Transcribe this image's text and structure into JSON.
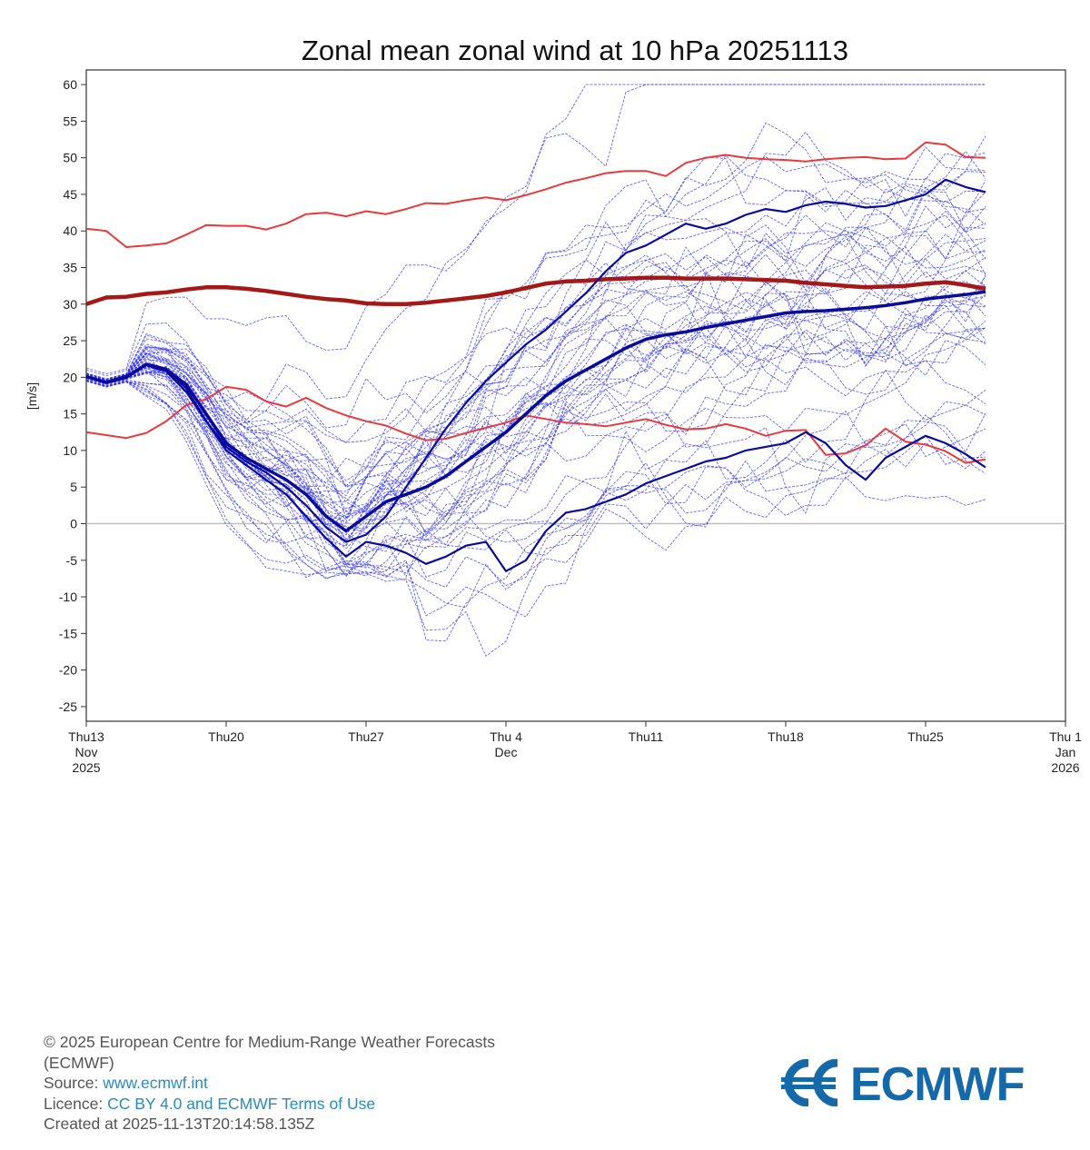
{
  "chart_data": {
    "type": "line",
    "title": "Zonal mean zonal wind at 10 hPa 20251113",
    "ylabel": "[m/s]",
    "ylim": [
      -27,
      62
    ],
    "yticks": [
      60,
      55,
      50,
      45,
      40,
      35,
      30,
      25,
      20,
      15,
      10,
      5,
      0,
      -5,
      -10,
      -15,
      -20,
      -25
    ],
    "xlim": [
      "2025-11-13",
      "2026-01-01"
    ],
    "xticks": [
      {
        "date": "2025-11-13",
        "lines": [
          "Thu13",
          "Nov",
          "2025"
        ]
      },
      {
        "date": "2025-11-20",
        "lines": [
          "Thu20"
        ]
      },
      {
        "date": "2025-11-27",
        "lines": [
          "Thu27"
        ]
      },
      {
        "date": "2025-12-04",
        "lines": [
          "Thu 4",
          "Dec"
        ]
      },
      {
        "date": "2025-12-11",
        "lines": [
          "Thu11"
        ]
      },
      {
        "date": "2025-12-18",
        "lines": [
          "Thu18"
        ]
      },
      {
        "date": "2025-12-25",
        "lines": [
          "Thu25"
        ]
      },
      {
        "date": "2026-01-01",
        "lines": [
          "Thu 1",
          "Jan",
          "2026"
        ]
      }
    ],
    "zero_line": true,
    "grid": false,
    "legend": "none",
    "colors": {
      "climatology": "#e83a3a",
      "climatology_mean": "#a51818",
      "members": "#3333ee",
      "highlight": "#0a0a9a",
      "zero": "#bbbbbb"
    },
    "dates": [
      "2025-11-13",
      "2025-11-14",
      "2025-11-15",
      "2025-11-16",
      "2025-11-17",
      "2025-11-18",
      "2025-11-19",
      "2025-11-20",
      "2025-11-21",
      "2025-11-22",
      "2025-11-23",
      "2025-11-24",
      "2025-11-25",
      "2025-11-26",
      "2025-11-27",
      "2025-11-28",
      "2025-11-29",
      "2025-11-30",
      "2025-12-01",
      "2025-12-02",
      "2025-12-03",
      "2025-12-04",
      "2025-12-05",
      "2025-12-06",
      "2025-12-07",
      "2025-12-08",
      "2025-12-09",
      "2025-12-10",
      "2025-12-11",
      "2025-12-12",
      "2025-12-13",
      "2025-12-14",
      "2025-12-15",
      "2025-12-16",
      "2025-12-17",
      "2025-12-18",
      "2025-12-19",
      "2025-12-20",
      "2025-12-21",
      "2025-12-22",
      "2025-12-23",
      "2025-12-24",
      "2025-12-25",
      "2025-12-26",
      "2025-12-27",
      "2025-12-28"
    ],
    "climatology_lines": [
      {
        "role": "upper",
        "values": [
          40.3,
          40.0,
          37.8,
          38.0,
          38.3,
          39.5,
          40.8,
          40.7,
          40.7,
          40.2,
          41.0,
          42.3,
          42.5,
          42.0,
          42.7,
          42.3,
          43.0,
          43.8,
          43.7,
          44.2,
          44.6,
          44.2,
          44.9,
          45.7,
          46.6,
          47.2,
          47.9,
          48.2,
          48.2,
          47.5,
          49.3,
          50.0,
          50.4,
          50.0,
          49.8,
          49.7,
          49.5,
          49.8,
          50.0,
          50.1,
          49.8,
          49.9,
          52.1,
          51.8,
          50.1,
          50.0
        ]
      },
      {
        "role": "mean",
        "values": [
          30.0,
          30.9,
          31.0,
          31.4,
          31.6,
          32.0,
          32.3,
          32.3,
          32.1,
          31.8,
          31.4,
          31.0,
          30.7,
          30.5,
          30.1,
          30.0,
          30.0,
          30.2,
          30.5,
          30.8,
          31.1,
          31.6,
          32.2,
          32.8,
          33.1,
          33.2,
          33.4,
          33.5,
          33.6,
          33.6,
          33.5,
          33.5,
          33.5,
          33.4,
          33.3,
          33.2,
          32.9,
          32.7,
          32.5,
          32.3,
          32.4,
          32.5,
          32.8,
          33.0,
          32.6,
          32.1
        ]
      },
      {
        "role": "lower",
        "values": [
          12.5,
          12.1,
          11.7,
          12.4,
          14.0,
          16.2,
          17.0,
          18.7,
          18.3,
          16.7,
          16.0,
          17.2,
          15.8,
          14.8,
          14.0,
          13.4,
          12.3,
          11.4,
          11.6,
          12.4,
          13.1,
          13.8,
          14.8,
          14.3,
          13.8,
          13.6,
          13.3,
          13.8,
          14.3,
          13.5,
          12.9,
          13.0,
          13.6,
          13.0,
          12.0,
          12.7,
          12.8,
          9.4,
          9.6,
          10.7,
          13.0,
          11.2,
          10.8,
          9.9,
          8.3,
          8.8
        ]
      }
    ],
    "highlight_members": [
      {
        "values": [
          20.1,
          19.3,
          20.0,
          21.8,
          21.1,
          19.0,
          15.0,
          11.0,
          9.0,
          7.5,
          6.0,
          4.0,
          1.0,
          -1.0,
          1.0,
          3.0,
          4.0,
          5.0,
          6.5,
          8.5,
          10.5,
          12.5,
          15.0,
          17.5,
          19.5,
          21.0,
          22.5,
          24.0,
          25.2,
          25.8,
          26.2,
          26.8,
          27.3,
          27.8,
          28.3,
          28.8,
          29.0,
          29.1,
          29.3,
          29.5,
          29.8,
          30.2,
          30.7,
          31.0,
          31.3,
          31.7
        ]
      },
      {
        "values": [
          20.1,
          19.4,
          20.2,
          21.7,
          20.8,
          18.0,
          14.0,
          10.5,
          8.5,
          7.0,
          5.0,
          2.5,
          -0.5,
          -2.5,
          -1.5,
          1.0,
          5.0,
          9.0,
          13.0,
          16.5,
          19.5,
          22.0,
          24.5,
          26.5,
          29.0,
          31.5,
          34.5,
          37.0,
          38.0,
          39.5,
          41.0,
          40.3,
          41.0,
          42.2,
          43.0,
          42.6,
          43.5,
          44.0,
          43.7,
          43.2,
          43.4,
          44.2,
          45.0,
          47.0,
          46.0,
          45.3
        ]
      },
      {
        "values": [
          20.1,
          19.2,
          20.0,
          21.7,
          21.0,
          18.5,
          14.0,
          10.0,
          8.0,
          6.0,
          4.0,
          1.0,
          -2.0,
          -4.5,
          -2.5,
          -3.0,
          -4.0,
          -5.5,
          -4.5,
          -3.0,
          -2.5,
          -6.5,
          -5.0,
          -1.0,
          1.5,
          2.0,
          3.0,
          4.0,
          5.5,
          6.5,
          7.5,
          8.5,
          9.0,
          10.0,
          10.5,
          11.0,
          12.5,
          11.0,
          8.0,
          6.0,
          9.0,
          10.5,
          12.0,
          11.0,
          9.5,
          7.7
        ]
      }
    ],
    "ensemble_members": 50
  },
  "footer": {
    "copyright": "© 2025 European Centre for Medium-Range Weather Forecasts",
    "org_abbrev": "(ECMWF)",
    "source_label": "Source:",
    "source_link": "www.ecmwf.int",
    "licence_label": "Licence:",
    "licence_link": "CC BY 4.0 and ECMWF Terms of Use",
    "created": "Created at 2025-11-13T20:14:58.135Z"
  },
  "logo": {
    "text": "ECMWF",
    "color": "#1569a8",
    "icon": "ecmwf-logo-icon"
  }
}
